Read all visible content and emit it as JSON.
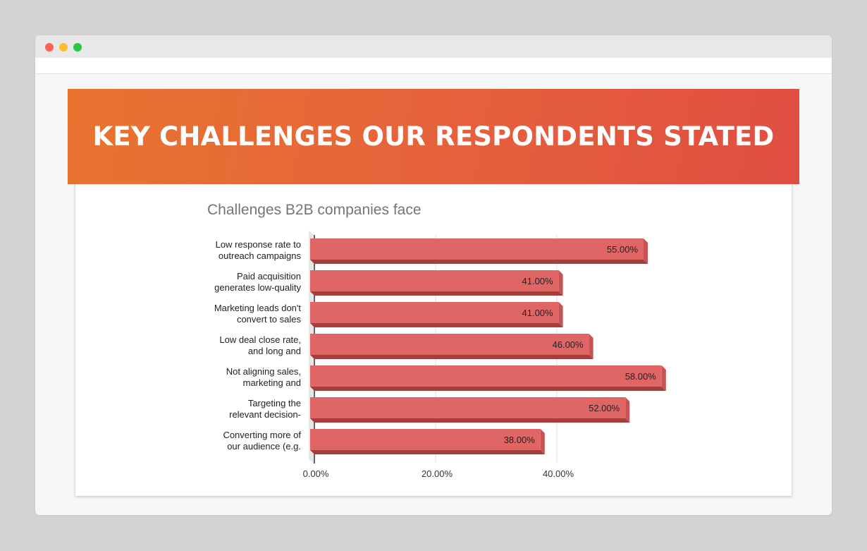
{
  "banner": {
    "title": "KEY CHALLENGES OUR RESPONDENTS STATED"
  },
  "colors": {
    "bar": "#e06666",
    "bar_shade": "#a63d3d",
    "banner_start": "#e8742f",
    "banner_end": "#e04e42"
  },
  "chart_data": {
    "type": "bar",
    "orientation": "horizontal",
    "title": "Challenges B2B companies face",
    "xlabel": "",
    "ylabel": "",
    "xlim": [
      0,
      60
    ],
    "x_ticks": [
      "0.00%",
      "20.00%",
      "40.00%"
    ],
    "x_tick_values": [
      0,
      20,
      40
    ],
    "grid": true,
    "categories": [
      [
        "Low response rate to",
        "outreach campaigns"
      ],
      [
        "Paid acquisition",
        "generates low-quality"
      ],
      [
        "Marketing leads don't",
        "convert to sales"
      ],
      [
        "Low deal close rate,",
        "and long and"
      ],
      [
        "Not aligning sales,",
        "marketing and"
      ],
      [
        "Targeting the",
        "relevant decision-"
      ],
      [
        "Converting more of",
        "our audience (e.g."
      ]
    ],
    "values": [
      55,
      41,
      41,
      46,
      58,
      52,
      38
    ],
    "value_labels": [
      "55.00%",
      "41.00%",
      "41.00%",
      "46.00%",
      "58.00%",
      "52.00%",
      "38.00%"
    ]
  }
}
